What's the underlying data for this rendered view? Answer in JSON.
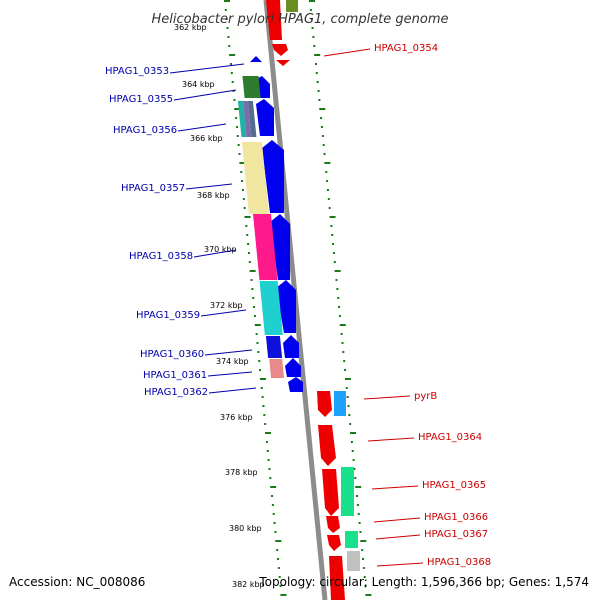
{
  "title": "Helicobacter pylori HPAG1, complete genome",
  "accession": "Accession: NC_008086",
  "topology": "Topology: circular; Length: 1,596,366 bp; Genes: 1,574",
  "colors": {
    "backbone": "#8c8c8c",
    "ticks": "#1a7a1a",
    "reverse_strand": "#0000ee",
    "forward_strand": "#ee0000",
    "label_left": "#0000aa",
    "label_right": "#cc0000"
  },
  "kbp_ticks": [
    "362 kbp",
    "364 kbp",
    "366 kbp",
    "368 kbp",
    "370 kbp",
    "372 kbp",
    "374 kbp",
    "376 kbp",
    "378 kbp",
    "380 kbp",
    "382 kbp"
  ],
  "left_labels": [
    "HPAG1_0353",
    "HPAG1_0355",
    "HPAG1_0356",
    "HPAG1_0357",
    "HPAG1_0358",
    "HPAG1_0359",
    "HPAG1_0360",
    "HPAG1_0361",
    "HPAG1_0362"
  ],
  "right_labels": [
    "HPAG1_0354",
    "pyrB",
    "HPAG1_0364",
    "HPAG1_0365",
    "HPAG1_0366",
    "HPAG1_0367",
    "HPAG1_0368"
  ]
}
